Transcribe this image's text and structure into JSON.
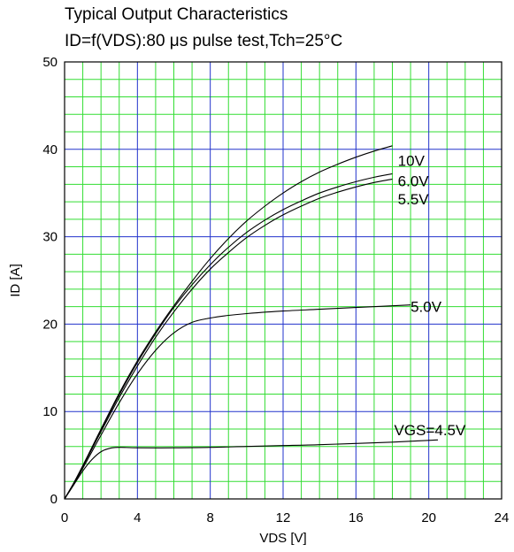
{
  "chart_data": {
    "type": "line",
    "title": "Typical Output Characteristics",
    "subtitle": "ID=f(VDS):80 μs pulse test,Tch=25°C",
    "xlabel": "VDS [V]",
    "ylabel": "ID [A]",
    "xlim": [
      0,
      24
    ],
    "ylim": [
      0,
      50
    ],
    "xticks": [
      0,
      4,
      8,
      12,
      16,
      20,
      24
    ],
    "yticks": [
      0,
      10,
      20,
      30,
      40,
      50
    ],
    "grid": true,
    "colors": {
      "minor_grid": "#33dd33",
      "major_grid": "#2233cc",
      "axes": "#000000",
      "curve": "#000000"
    },
    "series": [
      {
        "name": "10V",
        "x": [
          0,
          0.5,
          1,
          1.5,
          2,
          3,
          4,
          5,
          6,
          7,
          8,
          9,
          10,
          11,
          12,
          13,
          14,
          15,
          16,
          17,
          18
        ],
        "y": [
          0,
          1.8,
          3.8,
          5.9,
          8.0,
          12.1,
          15.8,
          19.1,
          22.1,
          24.9,
          27.5,
          29.8,
          31.8,
          33.5,
          35.0,
          36.3,
          37.4,
          38.3,
          39.1,
          39.8,
          40.4
        ]
      },
      {
        "name": "6.0V",
        "x": [
          0,
          0.5,
          1,
          1.5,
          2,
          3,
          4,
          5,
          6,
          7,
          8,
          9,
          10,
          11,
          12,
          13,
          14,
          15,
          16,
          17,
          18
        ],
        "y": [
          0,
          1.8,
          3.8,
          5.8,
          7.9,
          11.9,
          15.6,
          18.9,
          21.9,
          24.5,
          26.8,
          28.8,
          30.5,
          31.9,
          33.1,
          34.1,
          35.0,
          35.7,
          36.3,
          36.8,
          37.2
        ]
      },
      {
        "name": "5.5V",
        "x": [
          0,
          0.5,
          1,
          1.5,
          2,
          3,
          4,
          5,
          6,
          7,
          8,
          9,
          10,
          11,
          12,
          13,
          14,
          15,
          16,
          17,
          18
        ],
        "y": [
          0,
          1.8,
          3.7,
          5.7,
          7.7,
          11.6,
          15.2,
          18.5,
          21.4,
          24.0,
          26.3,
          28.2,
          29.9,
          31.3,
          32.5,
          33.5,
          34.4,
          35.1,
          35.7,
          36.2,
          36.6
        ]
      },
      {
        "name": "5.0V",
        "x": [
          0,
          0.5,
          1,
          1.5,
          2,
          3,
          4,
          5,
          6,
          7,
          8,
          9,
          10,
          12,
          14,
          16,
          18,
          19
        ],
        "y": [
          0,
          1.7,
          3.5,
          5.4,
          7.3,
          11.0,
          14.3,
          17.0,
          19.0,
          20.2,
          20.7,
          21.0,
          21.2,
          21.5,
          21.7,
          21.9,
          22.1,
          22.2
        ]
      },
      {
        "name": "VGS=4.5V",
        "x": [
          0,
          0.5,
          1,
          1.5,
          2,
          2.5,
          3,
          4,
          6,
          8,
          10,
          12,
          14,
          16,
          18,
          20,
          20.5
        ],
        "y": [
          0,
          1.6,
          3.2,
          4.5,
          5.4,
          5.8,
          5.9,
          5.85,
          5.85,
          5.9,
          6.0,
          6.1,
          6.2,
          6.35,
          6.5,
          6.7,
          6.75
        ]
      }
    ],
    "curve_labels": [
      {
        "text": "10V",
        "x": 18.3,
        "y": 38.7
      },
      {
        "text": "6.0V",
        "x": 18.3,
        "y": 36.4
      },
      {
        "text": "5.5V",
        "x": 18.3,
        "y": 34.3
      },
      {
        "text": "5.0V",
        "x": 19.0,
        "y": 22.0
      },
      {
        "text": "VGS=4.5V",
        "x": 18.1,
        "y": 7.9
      }
    ]
  }
}
